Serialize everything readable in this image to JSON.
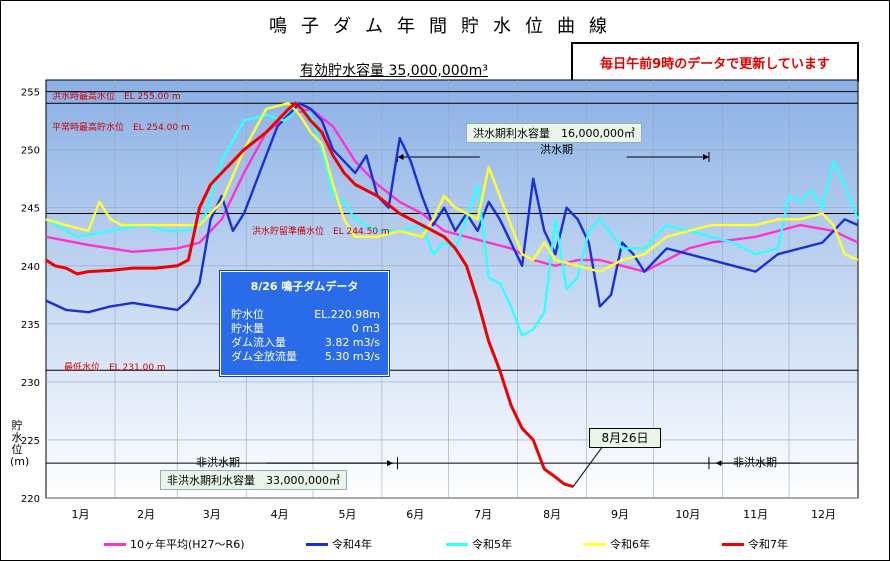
{
  "title": "鳴子ダム年間貯水位曲線",
  "subtitle": "有効貯水容量 35,000,000m³",
  "notice": "毎日午前9時のデータで更新しています",
  "y_axis_label": "貯水位(m)",
  "info_box": {
    "title": "8/26 鳴子ダムデータ",
    "rows": [
      {
        "label": "貯水位",
        "value": "EL.220.98m"
      },
      {
        "label": "貯水量",
        "value": "0 m3"
      },
      {
        "label": "ダム流入量",
        "value": "3.82 m3/s"
      },
      {
        "label": "ダム全放流量",
        "value": "5.30 m3/s"
      }
    ]
  },
  "callout": "8月26日",
  "annotations": {
    "flood_max": "洪水時最高水位　EL 255.00 m",
    "normal_max": "平常時最高貯水位　EL 254.00 m",
    "flood_reserve": "洪水貯留準備水位　EL 244.50 m",
    "min_level": "最低水位　EL 231.00 m",
    "flood_capacity": "洪水期利水容量　16,000,000㎥",
    "flood_period": "洪水期",
    "nonflood_capacity": "非洪水期利水容量　33,000,000㎥",
    "nonflood_left": "非洪水期",
    "nonflood_right": "非洪水期"
  },
  "colors": {
    "avg": "#ff33cc",
    "r4": "#1a2fd6",
    "r5": "#33ffff",
    "r6": "#ffff33",
    "r7": "#ee0000"
  },
  "chart_data": {
    "type": "line",
    "title": "鳴子ダム年間貯水位曲線",
    "ylabel": "貯水位(m)",
    "ylim": [
      220,
      256
    ],
    "yticks": [
      220,
      225,
      230,
      235,
      240,
      245,
      250,
      255
    ],
    "x_unit": "day of year (1 = Jan 1)",
    "xlim": [
      1,
      366
    ],
    "categories": [
      "1月",
      "2月",
      "3月",
      "4月",
      "5月",
      "6月",
      "7月",
      "8月",
      "9月",
      "10月",
      "11月",
      "12月"
    ],
    "reference_levels": [
      255.0,
      254.0,
      244.5,
      231.0,
      223.0
    ],
    "series": [
      {
        "name": "10ヶ年平均(H27〜R6)",
        "key": "avg",
        "x": [
          1,
          20,
          40,
          60,
          70,
          80,
          90,
          100,
          110,
          120,
          130,
          140,
          150,
          160,
          170,
          180,
          190,
          200,
          210,
          220,
          230,
          240,
          250,
          260,
          270,
          280,
          290,
          300,
          320,
          340,
          355,
          366
        ],
        "y": [
          242.5,
          241.8,
          241.2,
          241.5,
          242.0,
          244.0,
          248.0,
          251.5,
          253.0,
          253.5,
          252.0,
          249.0,
          247.0,
          245.5,
          244.5,
          243.0,
          242.5,
          242.0,
          241.5,
          240.5,
          240.0,
          240.5,
          240.5,
          240.0,
          239.5,
          240.5,
          241.5,
          242.0,
          242.5,
          243.5,
          243.0,
          242.0
        ]
      },
      {
        "name": "令和4年",
        "key": "r4",
        "x": [
          1,
          10,
          20,
          30,
          40,
          50,
          60,
          65,
          70,
          75,
          80,
          85,
          90,
          95,
          100,
          105,
          110,
          115,
          120,
          125,
          130,
          135,
          140,
          145,
          150,
          155,
          160,
          165,
          170,
          175,
          180,
          185,
          190,
          195,
          200,
          205,
          210,
          215,
          220,
          225,
          230,
          235,
          240,
          245,
          250,
          255,
          260,
          265,
          270,
          275,
          280,
          290,
          300,
          310,
          320,
          330,
          340,
          350,
          360,
          366
        ],
        "y": [
          237.0,
          236.2,
          236.0,
          236.5,
          236.8,
          236.5,
          236.2,
          237.0,
          238.5,
          244.0,
          246.0,
          243.0,
          244.5,
          247.0,
          249.5,
          252.0,
          253.0,
          254.0,
          253.5,
          252.5,
          250.0,
          249.0,
          248.0,
          249.5,
          246.0,
          245.0,
          251.0,
          249.0,
          246.0,
          243.5,
          245.0,
          243.0,
          244.5,
          243.0,
          245.5,
          244.0,
          242.0,
          240.0,
          247.5,
          243.0,
          241.0,
          245.0,
          244.0,
          242.0,
          236.5,
          237.5,
          242.0,
          241.0,
          239.5,
          240.5,
          241.5,
          241.0,
          240.5,
          240.0,
          239.5,
          241.0,
          241.5,
          242.0,
          244.0,
          243.5
        ]
      },
      {
        "name": "令和5年",
        "key": "r5",
        "x": [
          1,
          15,
          30,
          45,
          55,
          65,
          72,
          80,
          90,
          100,
          108,
          115,
          120,
          125,
          130,
          135,
          140,
          150,
          160,
          170,
          175,
          180,
          185,
          190,
          195,
          200,
          205,
          210,
          215,
          220,
          225,
          230,
          235,
          240,
          245,
          250,
          260,
          270,
          280,
          290,
          300,
          310,
          320,
          330,
          335,
          340,
          345,
          350,
          355,
          360,
          366
        ],
        "y": [
          244.0,
          242.5,
          243.0,
          243.5,
          243.0,
          243.0,
          244.0,
          249.0,
          252.5,
          253.0,
          252.5,
          253.5,
          253.0,
          250.0,
          246.0,
          245.5,
          244.0,
          243.0,
          243.0,
          243.5,
          241.0,
          242.0,
          241.5,
          244.0,
          247.0,
          239.0,
          238.5,
          236.5,
          234.0,
          234.5,
          236.0,
          244.0,
          238.0,
          239.0,
          243.0,
          244.0,
          241.5,
          241.5,
          243.5,
          243.0,
          242.5,
          242.0,
          241.0,
          241.5,
          246.0,
          245.5,
          246.5,
          245.0,
          249.0,
          247.0,
          244.0
        ]
      },
      {
        "name": "令和6年",
        "key": "r6",
        "x": [
          1,
          10,
          20,
          25,
          30,
          35,
          40,
          50,
          60,
          70,
          80,
          90,
          100,
          110,
          115,
          120,
          125,
          130,
          135,
          140,
          150,
          160,
          170,
          175,
          180,
          185,
          190,
          195,
          200,
          205,
          210,
          215,
          220,
          225,
          230,
          240,
          250,
          260,
          270,
          280,
          290,
          300,
          310,
          320,
          330,
          340,
          350,
          355,
          360,
          366
        ],
        "y": [
          244.0,
          243.5,
          243.0,
          245.5,
          244.0,
          243.5,
          243.5,
          243.5,
          243.5,
          243.5,
          245.5,
          250.0,
          253.5,
          254.0,
          253.0,
          251.5,
          250.5,
          247.0,
          244.0,
          242.5,
          242.5,
          243.0,
          242.5,
          244.0,
          246.0,
          245.0,
          244.5,
          244.0,
          248.5,
          246.0,
          243.5,
          241.0,
          240.5,
          242.0,
          240.5,
          240.0,
          239.5,
          240.5,
          241.0,
          242.5,
          243.0,
          243.5,
          243.5,
          243.5,
          244.0,
          244.0,
          244.5,
          243.5,
          241.0,
          240.5
        ]
      },
      {
        "name": "令和7年",
        "key": "r7",
        "x": [
          1,
          5,
          10,
          15,
          20,
          30,
          40,
          50,
          60,
          65,
          70,
          75,
          80,
          90,
          100,
          105,
          110,
          113,
          116,
          120,
          125,
          130,
          135,
          140,
          150,
          160,
          170,
          180,
          185,
          190,
          195,
          200,
          205,
          210,
          215,
          220,
          225,
          230,
          234,
          238
        ],
        "y": [
          240.5,
          240.0,
          239.8,
          239.3,
          239.5,
          239.6,
          239.8,
          239.8,
          240.0,
          240.5,
          245.0,
          247.0,
          248.0,
          250.0,
          251.5,
          252.5,
          253.5,
          254.0,
          253.5,
          252.5,
          251.5,
          249.5,
          248.0,
          247.0,
          246.0,
          244.5,
          243.5,
          242.5,
          241.5,
          240.0,
          237.0,
          233.5,
          231.0,
          228.0,
          226.0,
          225.0,
          222.5,
          221.8,
          221.2,
          220.98
        ]
      }
    ]
  }
}
